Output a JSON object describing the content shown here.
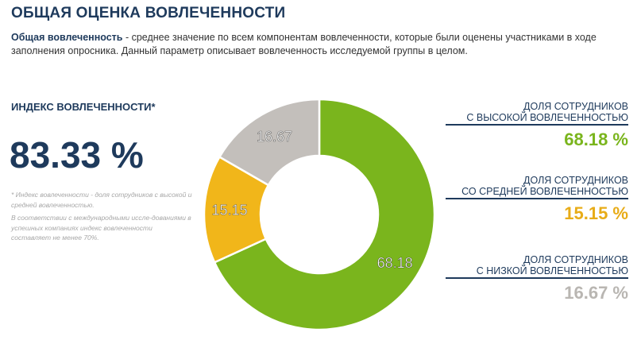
{
  "header": {
    "title": "ОБЩАЯ ОЦЕНКА ВОВЛЕЧЕННОСТИ",
    "desc_term": "Общая вовлеченность",
    "desc_text": " - среднее значение по всем компонентам вовлеченности, которые были оценены участниками в ходе заполнения опросника. Данный параметр описывает вовлеченность исследуемой группы в целом."
  },
  "index": {
    "label": "ИНДЕКС ВОВЛЕЧЕННОСТИ*",
    "value": "83.33 %",
    "note1": "* Индекс вовлеченности - доля сотрудников с высокой и средней вовлеченностью.",
    "note2": "В соответствии с международными иссле-дованиями в успешных компаниях индекс вовлеченности составляет не менее 70%."
  },
  "stats": {
    "high": {
      "label_line1": "ДОЛЯ СОТРУДНИКОВ",
      "label_line2": "С ВЫСОКОЙ ВОВЛЕЧЕННОСТЬЮ",
      "value": "68.18 %",
      "color": "#7ab51d"
    },
    "mid": {
      "label_line1": "ДОЛЯ СОТРУДНИКОВ",
      "label_line2": "СО СРЕДНЕЙ ВОВЛЕЧЕННОСТЬЮ",
      "value": "15.15 %",
      "color": "#e8ac18"
    },
    "low": {
      "label_line1": "ДОЛЯ СОТРУДНИКОВ",
      "label_line2": "С НИЗКОЙ ВОВЛЕЧЕННОСТЬЮ",
      "value": "16.67 %",
      "color": "#b9b6b2"
    }
  },
  "chart_data": {
    "type": "pie",
    "donut": true,
    "title": "",
    "slices": [
      {
        "value": 68.18,
        "label": "68.18",
        "color": "#7ab51d"
      },
      {
        "value": 15.15,
        "label": "15.15",
        "color": "#f1b61a"
      },
      {
        "value": 16.67,
        "label": "16.67",
        "color": "#c3bfbb"
      }
    ]
  }
}
